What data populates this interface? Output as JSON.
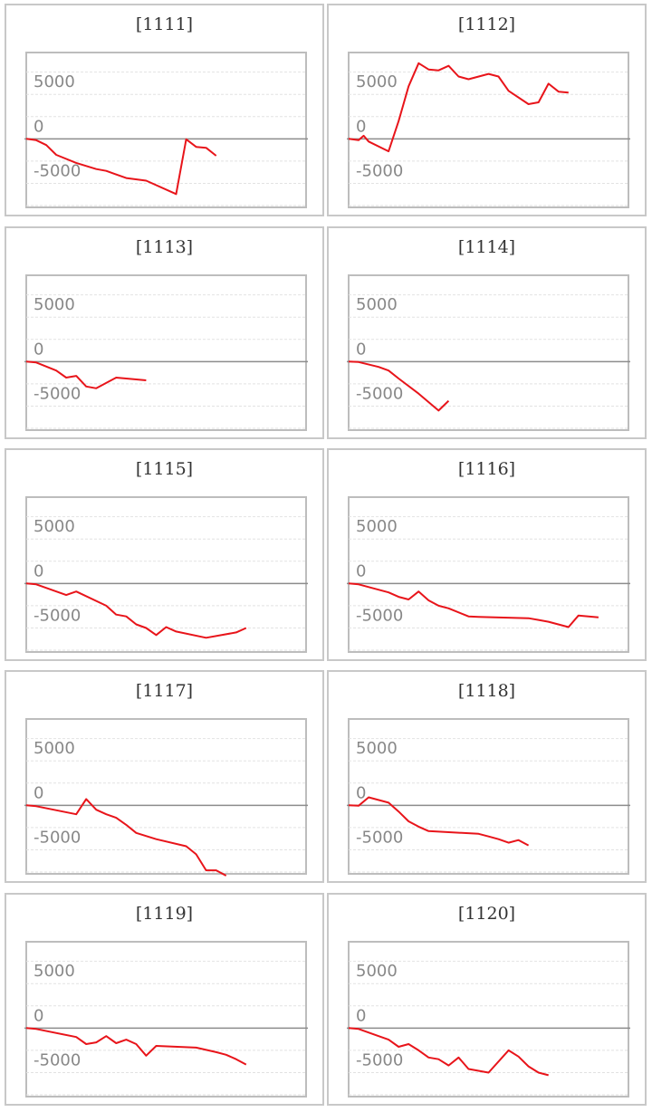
{
  "chart_data": [
    {
      "type": "line",
      "title": "[1111]",
      "yticks": [
        5000,
        0,
        -5000
      ],
      "ylim": [
        -7700,
        9700
      ],
      "x": [
        0,
        1,
        2,
        3,
        5,
        7,
        8,
        10,
        12,
        15,
        16,
        17,
        18,
        19
      ],
      "values": [
        0,
        -150,
        -700,
        -1800,
        -2700,
        -3400,
        -3600,
        -4400,
        -4700,
        -6200,
        -50,
        -900,
        -1000,
        -1900
      ]
    },
    {
      "type": "line",
      "title": "[1112]",
      "yticks": [
        5000,
        0,
        -5000
      ],
      "ylim": [
        -7700,
        9700
      ],
      "x": [
        0,
        1,
        1.5,
        2,
        4,
        5,
        6,
        7,
        8,
        9,
        10,
        11,
        12,
        14,
        15,
        16,
        18,
        19,
        20,
        21,
        22
      ],
      "values": [
        0,
        -150,
        350,
        -300,
        -1400,
        2000,
        5900,
        8500,
        7800,
        7700,
        8200,
        7000,
        6700,
        7300,
        7000,
        5400,
        3900,
        4100,
        6200,
        5300,
        5200
      ]
    },
    {
      "type": "line",
      "title": "[1113]",
      "yticks": [
        5000,
        0,
        -5000
      ],
      "ylim": [
        -7700,
        9700
      ],
      "x": [
        0,
        1,
        3,
        4,
        5,
        6,
        7,
        9,
        10,
        12
      ],
      "values": [
        0,
        -100,
        -1000,
        -1800,
        -1600,
        -2800,
        -3000,
        -1800,
        -1900,
        -2100
      ]
    },
    {
      "type": "line",
      "title": "[1114]",
      "yticks": [
        5000,
        0,
        -5000
      ],
      "ylim": [
        -7700,
        9700
      ],
      "x": [
        0,
        1,
        3,
        4,
        5,
        7,
        9,
        10
      ],
      "values": [
        0,
        -50,
        -600,
        -1000,
        -1900,
        -3600,
        -5500,
        -4400
      ]
    },
    {
      "type": "line",
      "title": "[1115]",
      "yticks": [
        5000,
        0,
        -5000
      ],
      "ylim": [
        -7700,
        9700
      ],
      "x": [
        0,
        1,
        4,
        5,
        8,
        9,
        10,
        11,
        12,
        13,
        14,
        15,
        18,
        21,
        22
      ],
      "values": [
        0,
        -100,
        -1300,
        -900,
        -2500,
        -3500,
        -3700,
        -4600,
        -5000,
        -5800,
        -4900,
        -5400,
        -6100,
        -5500,
        -5000
      ]
    },
    {
      "type": "line",
      "title": "[1116]",
      "yticks": [
        5000,
        0,
        -5000
      ],
      "ylim": [
        -7700,
        9700
      ],
      "x": [
        0,
        1,
        4,
        5,
        6,
        7,
        8,
        9,
        10,
        12,
        13,
        18,
        19,
        20,
        22,
        23,
        25
      ],
      "values": [
        0,
        -100,
        -1000,
        -1500,
        -1800,
        -900,
        -1900,
        -2500,
        -2800,
        -3700,
        -3750,
        -3900,
        -4100,
        -4300,
        -4900,
        -3600,
        -3800
      ]
    },
    {
      "type": "line",
      "title": "[1117]",
      "yticks": [
        5000,
        0,
        -5000
      ],
      "ylim": [
        -7700,
        9700
      ],
      "x": [
        0,
        1,
        5,
        6,
        7,
        8,
        9,
        10,
        11,
        13,
        16,
        17,
        18,
        19,
        20
      ],
      "values": [
        0,
        -100,
        -1000,
        700,
        -500,
        -1000,
        -1400,
        -2200,
        -3100,
        -3800,
        -4600,
        -5500,
        -7300,
        -7300,
        -7900
      ]
    },
    {
      "type": "line",
      "title": "[1118]",
      "yticks": [
        5000,
        0,
        -5000
      ],
      "ylim": [
        -7700,
        9700
      ],
      "x": [
        0,
        1,
        2,
        4,
        5,
        6,
        7,
        8,
        13,
        14,
        15,
        16,
        17,
        18
      ],
      "values": [
        0,
        -50,
        900,
        300,
        -700,
        -1800,
        -2400,
        -2900,
        -3200,
        -3500,
        -3800,
        -4200,
        -3900,
        -4500
      ]
    },
    {
      "type": "line",
      "title": "[1119]",
      "yticks": [
        5000,
        0,
        -5000
      ],
      "ylim": [
        -7700,
        9700
      ],
      "x": [
        0,
        1,
        5,
        6,
        7,
        8,
        9,
        10,
        11,
        12,
        13,
        17,
        19,
        20,
        21,
        22
      ],
      "values": [
        0,
        -100,
        -1000,
        -1800,
        -1600,
        -900,
        -1700,
        -1300,
        -1800,
        -3100,
        -2000,
        -2200,
        -2700,
        -3000,
        -3500,
        -4100
      ]
    },
    {
      "type": "line",
      "title": "[1120]",
      "yticks": [
        5000,
        0,
        -5000
      ],
      "ylim": [
        -7700,
        9700
      ],
      "x": [
        0,
        1,
        4,
        5,
        6,
        7,
        8,
        9,
        10,
        11,
        12,
        14,
        16,
        17,
        18,
        19,
        20
      ],
      "values": [
        0,
        -100,
        -1300,
        -2100,
        -1800,
        -2500,
        -3300,
        -3500,
        -4200,
        -3300,
        -4600,
        -5000,
        -2500,
        -3200,
        -4300,
        -5000,
        -5300
      ]
    }
  ]
}
